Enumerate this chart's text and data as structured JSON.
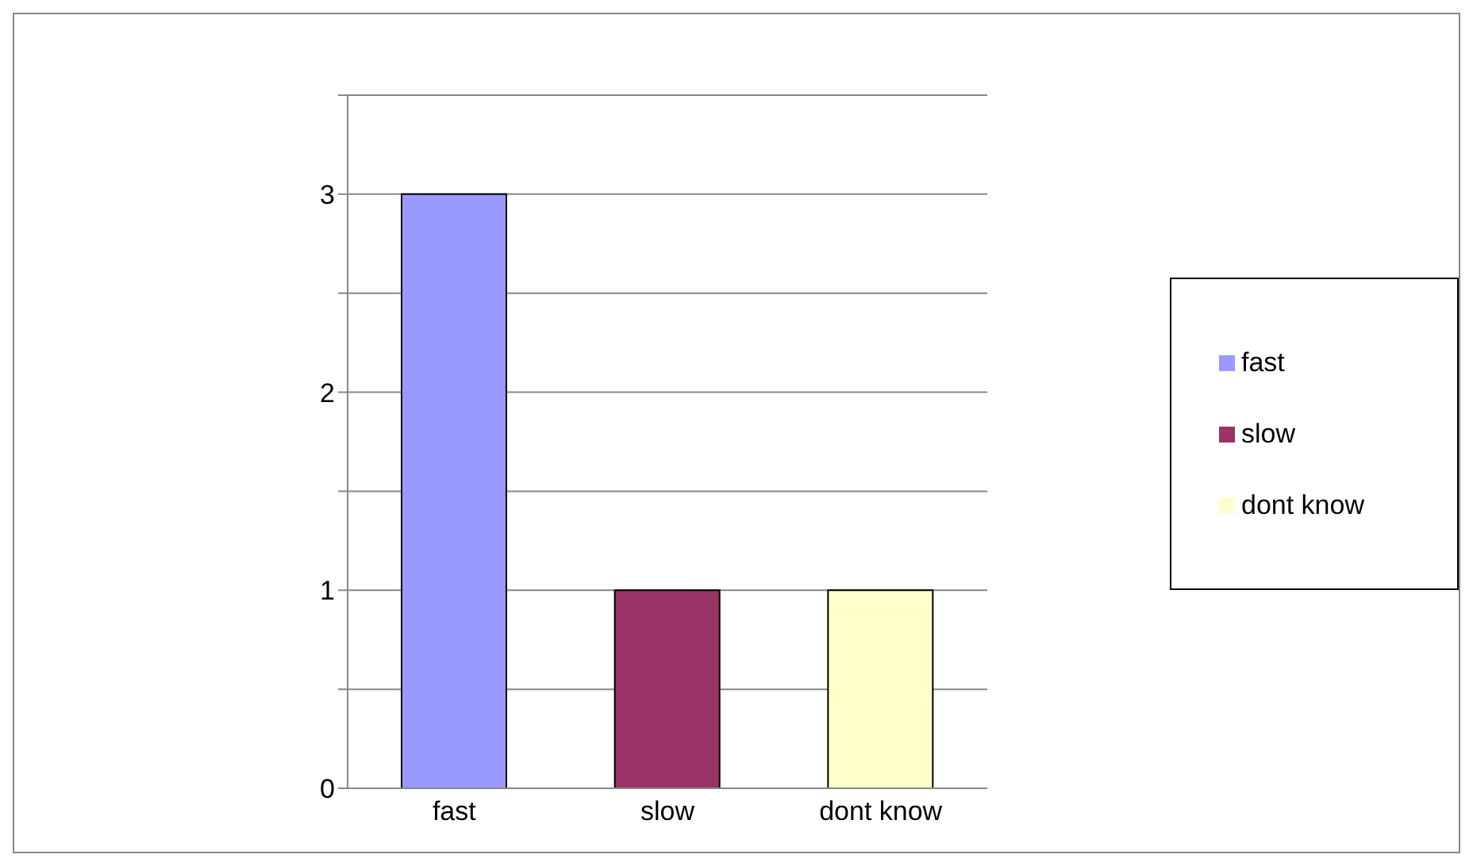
{
  "chart_data": {
    "type": "bar",
    "categories": [
      "fast",
      "slow",
      "dont know"
    ],
    "series": [
      {
        "name": "fast",
        "color": "#9999ff",
        "values": [
          3,
          null,
          null
        ]
      },
      {
        "name": "slow",
        "color": "#993366",
        "values": [
          null,
          1,
          null
        ]
      },
      {
        "name": "dont know",
        "color": "#ffffcc",
        "values": [
          null,
          null,
          1
        ]
      }
    ],
    "stacked": true,
    "ylim": [
      0,
      3.5
    ],
    "yticks": [
      0,
      {
        "value": 0.5,
        "label": null
      },
      1,
      {
        "value": 1.5,
        "label": null
      },
      2,
      {
        "value": 2.5,
        "label": null
      },
      3,
      {
        "value": 3.5,
        "label": null
      }
    ],
    "grid": "y",
    "legend": "right"
  }
}
